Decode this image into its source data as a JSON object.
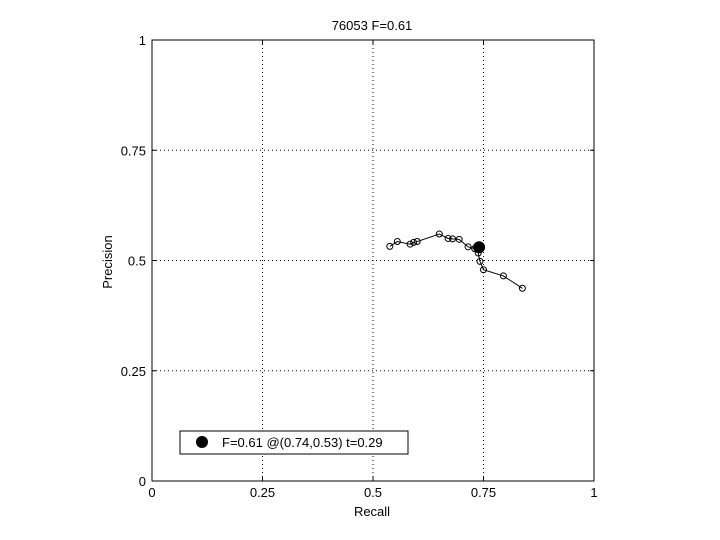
{
  "chart_data": {
    "type": "line",
    "title": "76053 F=0.61",
    "xlabel": "Recall",
    "ylabel": "Precision",
    "xlim": [
      0,
      1
    ],
    "ylim": [
      0,
      1
    ],
    "grid": true,
    "x_ticks": [
      "0",
      "0.25",
      "0.5",
      "0.75",
      "1"
    ],
    "y_ticks": [
      "0",
      "0.25",
      "0.5",
      "0.75",
      "1"
    ],
    "series": [
      {
        "marker": "open-circle",
        "x": [
          0.538,
          0.555,
          0.584,
          0.592,
          0.6,
          0.65,
          0.67,
          0.68,
          0.695,
          0.715,
          0.73,
          0.738,
          0.742,
          0.75,
          0.795,
          0.838
        ],
        "y": [
          0.532,
          0.543,
          0.537,
          0.541,
          0.543,
          0.56,
          0.55,
          0.549,
          0.548,
          0.531,
          0.527,
          0.517,
          0.498,
          0.479,
          0.465,
          0.437
        ]
      }
    ],
    "best_point": {
      "x": 0.74,
      "y": 0.53,
      "color": "#000000"
    },
    "legend": {
      "position": "bottom-left",
      "text": "F=0.61 @(0.74,0.53) t=0.29"
    },
    "colors": {
      "line": "#000000",
      "grid": "#000000",
      "background": "#ffffff"
    }
  }
}
